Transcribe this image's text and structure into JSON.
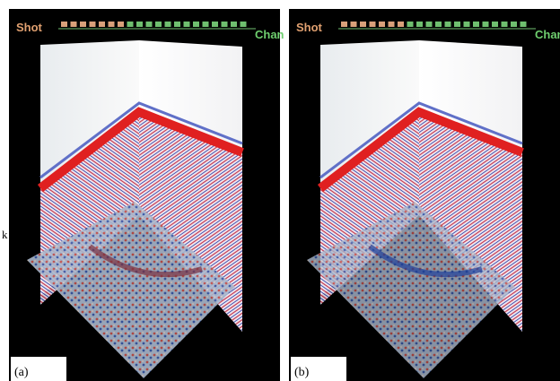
{
  "side_text": "k",
  "panels": [
    {
      "shot_label": "Shot",
      "chan_label": "Chan",
      "caption": "(a)"
    },
    {
      "shot_label": "Shot",
      "chan_label": "Chan",
      "caption": "(b)"
    }
  ]
}
